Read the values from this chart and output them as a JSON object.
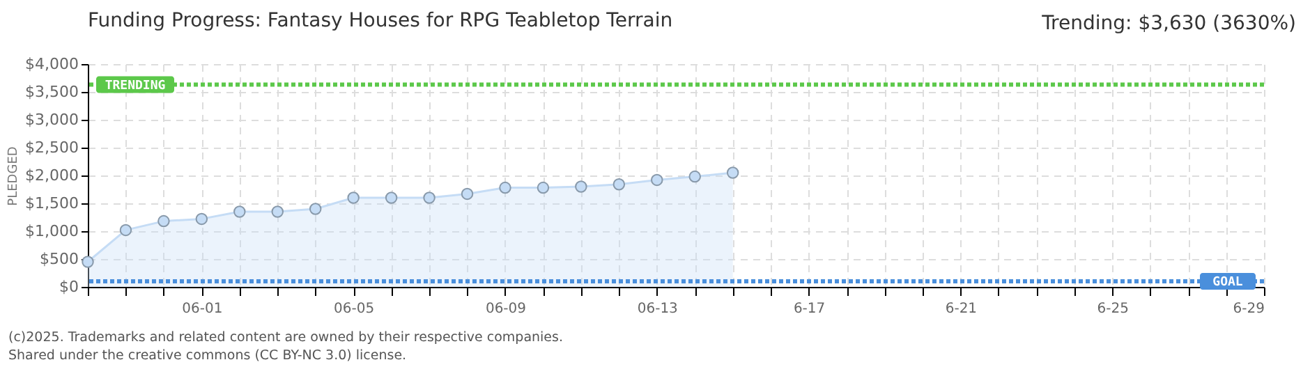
{
  "chart_data": {
    "type": "area",
    "title": "Funding Progress: Fantasy Houses for RPG Teabletop Terrain",
    "ylabel": "PLEDGED",
    "annotations": [
      "Trending:  $3,630 (3630%)",
      "(c)2025. Trademarks and related content are owned by their respective companies.",
      "Shared under the creative commons (CC BY-NC 3.0) license."
    ],
    "x": [
      "--05-29",
      "--05-30",
      "--05-31",
      "--06-01",
      "--06-02",
      "--06-03",
      "--06-04",
      "--06-05",
      "--06-06",
      "--06-07",
      "--06-08",
      "--06-09",
      "--06-10",
      "--06-11",
      "--06-12",
      "--06-13",
      "--06-14",
      "--06-15"
    ],
    "series": [
      {
        "color": "#c5dcf5",
        "values": [
          450,
          1020,
          1180,
          1220,
          1350,
          1350,
          1400,
          1600,
          1600,
          1600,
          1670,
          1780,
          1780,
          1800,
          1840,
          1920,
          1980,
          2050
        ]
      }
    ],
    "xlim": [
      "--05-29",
      "--06-29"
    ],
    "xticks": [
      {
        "value": "--05-29",
        "label": null
      },
      {
        "value": "--05-30",
        "label": null
      },
      {
        "value": "--05-31",
        "label": null
      },
      {
        "value": "--06-01",
        "label": "06-01"
      },
      {
        "value": "--06-02",
        "label": null
      },
      {
        "value": "--06-03",
        "label": null
      },
      {
        "value": "--06-04",
        "label": null
      },
      {
        "value": "--06-05",
        "label": "06-05"
      },
      {
        "value": "--06-06",
        "label": null
      },
      {
        "value": "--06-07",
        "label": null
      },
      {
        "value": "--06-08",
        "label": null
      },
      {
        "value": "--06-09",
        "label": "06-09"
      },
      {
        "value": "--06-10",
        "label": null
      },
      {
        "value": "--06-11",
        "label": null
      },
      {
        "value": "--06-12",
        "label": null
      },
      {
        "value": "--06-13",
        "label": "06-13"
      },
      {
        "value": "--06-14",
        "label": null
      },
      {
        "value": "--06-15",
        "label": null
      },
      {
        "value": "--06-16",
        "label": null
      },
      {
        "value": "--06-17",
        "label": "6-17"
      },
      {
        "value": "--06-18",
        "label": null
      },
      {
        "value": "--06-19",
        "label": null
      },
      {
        "value": "--06-20",
        "label": null
      },
      {
        "value": "--06-21",
        "label": "6-21"
      },
      {
        "value": "--06-22",
        "label": null
      },
      {
        "value": "--06-23",
        "label": null
      },
      {
        "value": "--06-24",
        "label": null
      },
      {
        "value": "--06-25",
        "label": "6-25"
      },
      {
        "value": "--06-26",
        "label": null
      },
      {
        "value": "--06-27",
        "label": null
      },
      {
        "value": "--06-28",
        "label": null
      },
      {
        "value": "--06-29",
        "label": "6-29"
      }
    ],
    "ylim": [
      0,
      4000
    ],
    "yticks": [
      {
        "value": 0,
        "label": "$0"
      },
      {
        "value": 500,
        "label": "$500"
      },
      {
        "value": 1000,
        "label": "$1,000"
      },
      {
        "value": 1500,
        "label": "$1,500"
      },
      {
        "value": 2000,
        "label": "$2,000"
      },
      {
        "value": 2500,
        "label": "$2,500"
      },
      {
        "value": 3000,
        "label": "$3,000"
      },
      {
        "value": 3500,
        "label": "$3,500"
      },
      {
        "value": 4000,
        "label": "$4,000"
      }
    ],
    "ref_lines": [
      {
        "axis": "y",
        "value": 3630,
        "label": "TRENDING",
        "color": "#5cc84a",
        "line_style": "dotted"
      },
      {
        "axis": "y",
        "value": 100,
        "label": "GOAL",
        "color": "#4a8fdc",
        "line_style": "dotted"
      }
    ],
    "grid": true,
    "marker": "circle",
    "line_style": "solid"
  }
}
